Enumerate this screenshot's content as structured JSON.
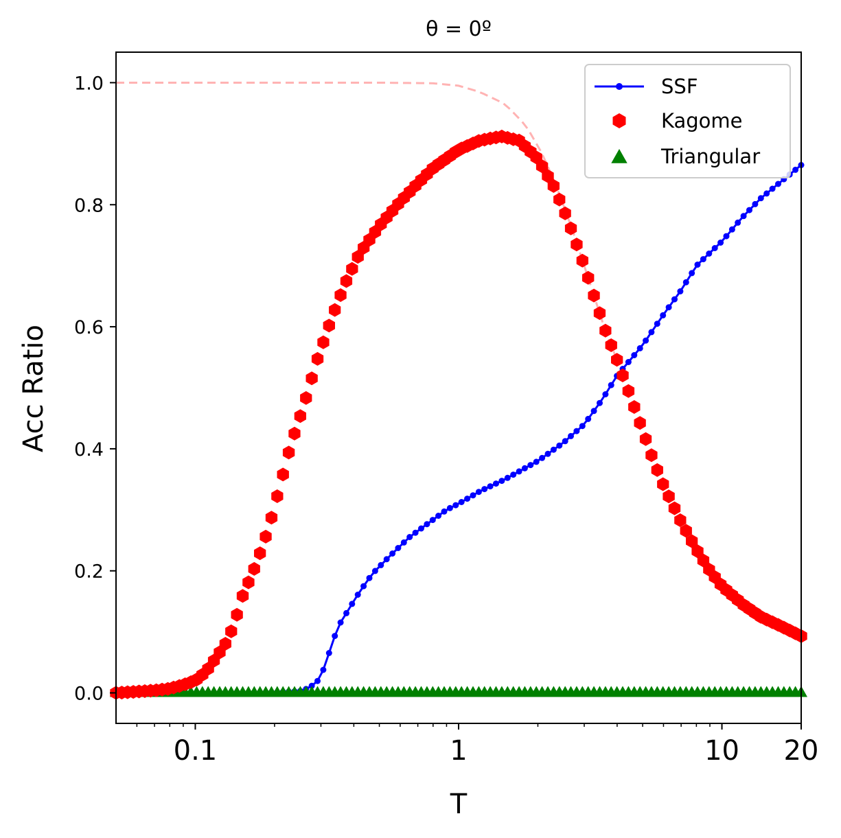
{
  "chart_data": {
    "type": "line",
    "title": "θ = 0º",
    "xlabel": "T",
    "ylabel": "Acc Ratio",
    "xscale": "log",
    "xlim": [
      0.05,
      20
    ],
    "ylim": [
      -0.05,
      1.05
    ],
    "xticks": [
      {
        "value": 0.1,
        "label": "0.1"
      },
      {
        "value": 1,
        "label": "1"
      },
      {
        "value": 10,
        "label": "10"
      },
      {
        "value": 20,
        "label": "20"
      }
    ],
    "yticks": [
      {
        "value": 0.0,
        "label": "0.0"
      },
      {
        "value": 0.2,
        "label": "0.2"
      },
      {
        "value": 0.4,
        "label": "0.4"
      },
      {
        "value": 0.6,
        "label": "0.6"
      },
      {
        "value": 0.8,
        "label": "0.8"
      },
      {
        "value": 1.0,
        "label": "1.0"
      }
    ],
    "grid": false,
    "legend_position": "top-right",
    "reference_curve": {
      "style": "dashed",
      "color": "#ffb3b3",
      "description_points": [
        [
          0.05,
          1.0
        ],
        [
          0.2,
          1.0
        ],
        [
          0.5,
          1.0
        ],
        [
          0.8,
          0.999
        ],
        [
          1.0,
          0.995
        ],
        [
          1.2,
          0.985
        ],
        [
          1.5,
          0.965
        ],
        [
          1.8,
          0.93
        ],
        [
          2.1,
          0.88
        ],
        [
          2.4,
          0.82
        ],
        [
          2.7,
          0.76
        ],
        [
          3.0,
          0.7
        ],
        [
          3.3,
          0.645
        ],
        [
          3.6,
          0.595
        ],
        [
          4.0,
          0.545
        ]
      ]
    },
    "series": [
      {
        "name": "SSF",
        "style": "line-dot",
        "color": "#0000ff",
        "points": [
          [
            0.05,
            0.0
          ],
          [
            0.1,
            0.0
          ],
          [
            0.2,
            0.001
          ],
          [
            0.25,
            0.003
          ],
          [
            0.27,
            0.008
          ],
          [
            0.29,
            0.018
          ],
          [
            0.31,
            0.042
          ],
          [
            0.33,
            0.08
          ],
          [
            0.35,
            0.11
          ],
          [
            0.38,
            0.135
          ],
          [
            0.42,
            0.165
          ],
          [
            0.47,
            0.195
          ],
          [
            0.55,
            0.225
          ],
          [
            0.65,
            0.255
          ],
          [
            0.75,
            0.275
          ],
          [
            0.9,
            0.3
          ],
          [
            1.0,
            0.31
          ],
          [
            1.2,
            0.33
          ],
          [
            1.5,
            0.35
          ],
          [
            2.0,
            0.38
          ],
          [
            2.5,
            0.41
          ],
          [
            3.0,
            0.44
          ],
          [
            3.5,
            0.48
          ],
          [
            4.0,
            0.52
          ],
          [
            5.0,
            0.57
          ],
          [
            6.0,
            0.62
          ],
          [
            7.0,
            0.66
          ],
          [
            8.0,
            0.7
          ],
          [
            10.0,
            0.74
          ],
          [
            12.0,
            0.78
          ],
          [
            14.0,
            0.81
          ],
          [
            17.0,
            0.84
          ],
          [
            20.0,
            0.865
          ]
        ]
      },
      {
        "name": "Kagome",
        "style": "hexagon",
        "color": "#ff0000",
        "points": [
          [
            0.05,
            0.0
          ],
          [
            0.06,
            0.002
          ],
          [
            0.07,
            0.004
          ],
          [
            0.08,
            0.007
          ],
          [
            0.09,
            0.013
          ],
          [
            0.1,
            0.02
          ],
          [
            0.11,
            0.035
          ],
          [
            0.12,
            0.058
          ],
          [
            0.13,
            0.08
          ],
          [
            0.14,
            0.11
          ],
          [
            0.15,
            0.155
          ],
          [
            0.17,
            0.21
          ],
          [
            0.19,
            0.27
          ],
          [
            0.21,
            0.34
          ],
          [
            0.23,
            0.405
          ],
          [
            0.26,
            0.475
          ],
          [
            0.29,
            0.545
          ],
          [
            0.33,
            0.615
          ],
          [
            0.37,
            0.67
          ],
          [
            0.42,
            0.72
          ],
          [
            0.5,
            0.765
          ],
          [
            0.6,
            0.805
          ],
          [
            0.7,
            0.835
          ],
          [
            0.8,
            0.86
          ],
          [
            1.0,
            0.89
          ],
          [
            1.2,
            0.905
          ],
          [
            1.45,
            0.912
          ],
          [
            1.7,
            0.905
          ],
          [
            2.0,
            0.875
          ],
          [
            2.3,
            0.83
          ],
          [
            2.6,
            0.775
          ],
          [
            3.0,
            0.7
          ],
          [
            3.3,
            0.645
          ],
          [
            3.6,
            0.595
          ],
          [
            4.0,
            0.545
          ],
          [
            4.5,
            0.485
          ],
          [
            5.0,
            0.43
          ],
          [
            5.5,
            0.38
          ],
          [
            6.0,
            0.34
          ],
          [
            7.0,
            0.28
          ],
          [
            8.0,
            0.235
          ],
          [
            9.0,
            0.2
          ],
          [
            10.0,
            0.175
          ],
          [
            12.0,
            0.145
          ],
          [
            14.0,
            0.125
          ],
          [
            17.0,
            0.108
          ],
          [
            20.0,
            0.093
          ]
        ]
      },
      {
        "name": "Triangular",
        "style": "triangle",
        "color": "#008000",
        "points": [
          [
            0.05,
            0.0
          ],
          [
            20.0,
            0.0
          ]
        ]
      }
    ]
  }
}
